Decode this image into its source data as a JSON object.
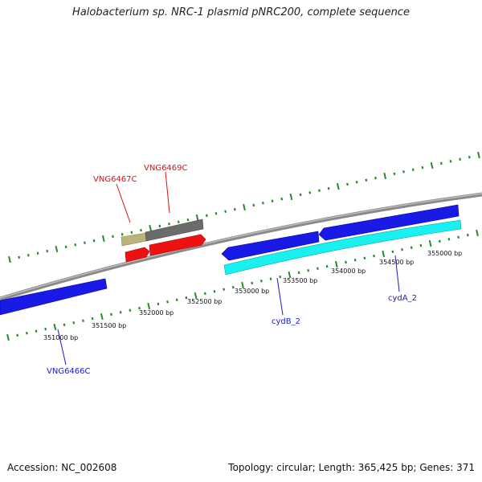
{
  "title": "Halobacterium sp. NRC-1 plasmid pNRC200, complete sequence",
  "footer": {
    "accession": "Accession: NC_002608",
    "summary": "Topology: circular; Length: 365,425 bp; Genes: 371"
  },
  "colors": {
    "backbone": "#8a8a8a",
    "ticks": "#2a8a2a",
    "gene_blue": "#1a1ae6",
    "gene_cyan": "#19f0f0",
    "gene_red": "#ee1111",
    "gene_gray": "#6b6b6b",
    "gene_khaki": "#b9b57a",
    "label_red": "#dd1111",
    "label_blue": "#1a1acc"
  },
  "ruler": {
    "labels": [
      "351000 bp",
      "351500 bp",
      "352000 bp",
      "352500 bp",
      "353000 bp",
      "353500 bp",
      "354000 bp",
      "354500 bp",
      "355000 bp"
    ]
  },
  "gene_labels": {
    "vng6467c": "VNG6467C",
    "vng6469c": "VNG6469C",
    "vng6466c": "VNG6466C",
    "cydb2": "cydB_2",
    "cyda2": "cydA_2"
  }
}
